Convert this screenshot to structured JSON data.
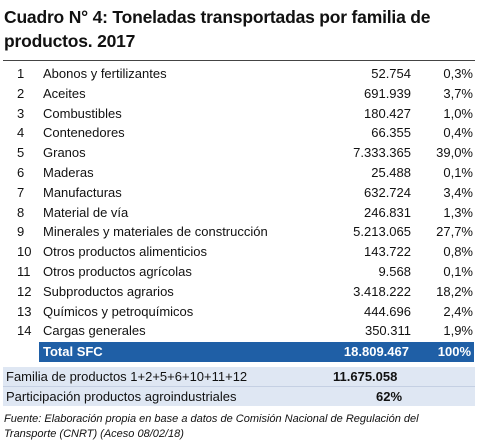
{
  "title": "Cuadro N° 4: Toneladas transportadas por familia de productos. 2017",
  "rows": [
    {
      "num": "1",
      "name": "Abonos y fertilizantes",
      "value": "52.754",
      "pct": "0,3%"
    },
    {
      "num": "2",
      "name": "Aceites",
      "value": "691.939",
      "pct": "3,7%"
    },
    {
      "num": "3",
      "name": "Combustibles",
      "value": "180.427",
      "pct": "1,0%"
    },
    {
      "num": "4",
      "name": "Contenedores",
      "value": "66.355",
      "pct": "0,4%"
    },
    {
      "num": "5",
      "name": "Granos",
      "value": "7.333.365",
      "pct": "39,0%"
    },
    {
      "num": "6",
      "name": "Maderas",
      "value": "25.488",
      "pct": "0,1%"
    },
    {
      "num": "7",
      "name": "Manufacturas",
      "value": "632.724",
      "pct": "3,4%"
    },
    {
      "num": "8",
      "name": "Material de vía",
      "value": "246.831",
      "pct": "1,3%"
    },
    {
      "num": "9",
      "name": "Minerales y materiales de construcción",
      "value": "5.213.065",
      "pct": "27,7%"
    },
    {
      "num": "10",
      "name": "Otros productos alimenticios",
      "value": "143.722",
      "pct": "0,8%"
    },
    {
      "num": "11",
      "name": "Otros productos agrícolas",
      "value": "9.568",
      "pct": "0,1%"
    },
    {
      "num": "12",
      "name": "Subproductos agrarios",
      "value": "3.418.222",
      "pct": "18,2%"
    },
    {
      "num": "13",
      "name": "Químicos y petroquímicos",
      "value": "444.696",
      "pct": "2,4%"
    },
    {
      "num": "14",
      "name": "Cargas generales",
      "value": "350.311",
      "pct": "1,9%"
    }
  ],
  "total": {
    "label": "Total SFC",
    "value": "18.809.467",
    "pct": "100%"
  },
  "summary": {
    "family_label": "Familia de productos 1+2+5+6+10+11+12",
    "family_value": "11.675.058",
    "participation_label": "Participación productos agroindustriales",
    "participation_pct": "62%"
  },
  "footnote": "Fuente: Elaboración propia en base a datos de Comisión Nacional de Regulación del Transporte (CNRT) (Aceso 08/02/18)",
  "colors": {
    "total_bg": "#1f5fa6",
    "summary_bg": "#dfe7f3"
  }
}
